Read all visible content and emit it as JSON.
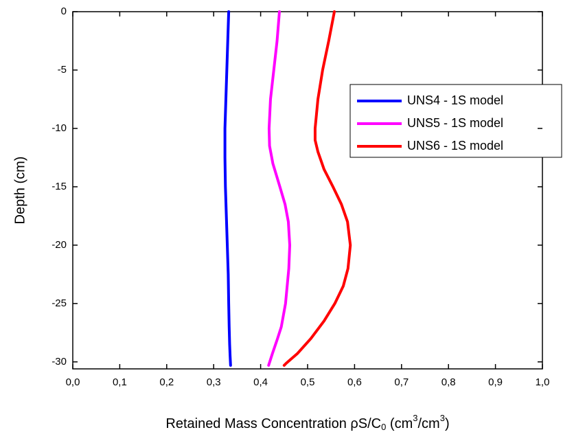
{
  "chart_data": {
    "type": "line",
    "xlabel_parts": [
      "Retained Mass Concentration ρS/C",
      "0",
      " (cm",
      "3",
      "/cm",
      "3",
      ")"
    ],
    "ylabel": "Depth (cm)",
    "xlim": [
      0,
      1
    ],
    "ylim": [
      -30.6,
      0
    ],
    "xticks": [
      {
        "value": 0,
        "label": "0,0"
      },
      {
        "value": 0.1,
        "label": "0,1"
      },
      {
        "value": 0.2,
        "label": "0,2"
      },
      {
        "value": 0.3,
        "label": "0,3"
      },
      {
        "value": 0.4,
        "label": "0,4"
      },
      {
        "value": 0.5,
        "label": "0,5"
      },
      {
        "value": 0.6,
        "label": "0,6"
      },
      {
        "value": 0.7,
        "label": "0,7"
      },
      {
        "value": 0.8,
        "label": "0,8"
      },
      {
        "value": 0.9,
        "label": "0,9"
      },
      {
        "value": 1,
        "label": "1,0"
      }
    ],
    "yticks": [
      0,
      -5,
      -10,
      -15,
      -20,
      -25,
      -30
    ],
    "series": [
      {
        "name": "UNS4 - 1S model",
        "color": "#0000ff",
        "x": [
          0.332,
          0.33,
          0.328,
          0.326,
          0.324,
          0.324,
          0.325,
          0.327,
          0.329,
          0.331,
          0.332,
          0.333,
          0.334,
          0.335,
          0.336
        ],
        "y": [
          0,
          -2.5,
          -5,
          -7.5,
          -10,
          -12.5,
          -15,
          -17.5,
          -20,
          -22.5,
          -25,
          -27,
          -28.5,
          -29.5,
          -30.3
        ]
      },
      {
        "name": "UNS5 - 1S model",
        "color": "#ff00ff",
        "x": [
          0.44,
          0.435,
          0.428,
          0.421,
          0.418,
          0.419,
          0.426,
          0.441,
          0.452,
          0.459,
          0.462,
          0.46,
          0.453,
          0.444,
          0.436,
          0.425,
          0.417
        ],
        "y": [
          0,
          -2.5,
          -5,
          -7.5,
          -10,
          -11.5,
          -13,
          -15,
          -16.5,
          -18,
          -20,
          -22,
          -25,
          -27,
          -28,
          -29.3,
          -30.3
        ]
      },
      {
        "name": "UNS6 - 1S model",
        "color": "#ff0000",
        "x": [
          0.557,
          0.545,
          0.532,
          0.522,
          0.516,
          0.516,
          0.522,
          0.535,
          0.554,
          0.572,
          0.585,
          0.591,
          0.586,
          0.576,
          0.558,
          0.535,
          0.507,
          0.478,
          0.455,
          0.45
        ],
        "y": [
          0,
          -2.5,
          -5,
          -7.5,
          -10,
          -11,
          -12,
          -13.5,
          -15,
          -16.5,
          -18,
          -20,
          -22,
          -23.5,
          -25,
          -26.5,
          -28,
          -29.3,
          -30.1,
          -30.3
        ]
      }
    ]
  }
}
